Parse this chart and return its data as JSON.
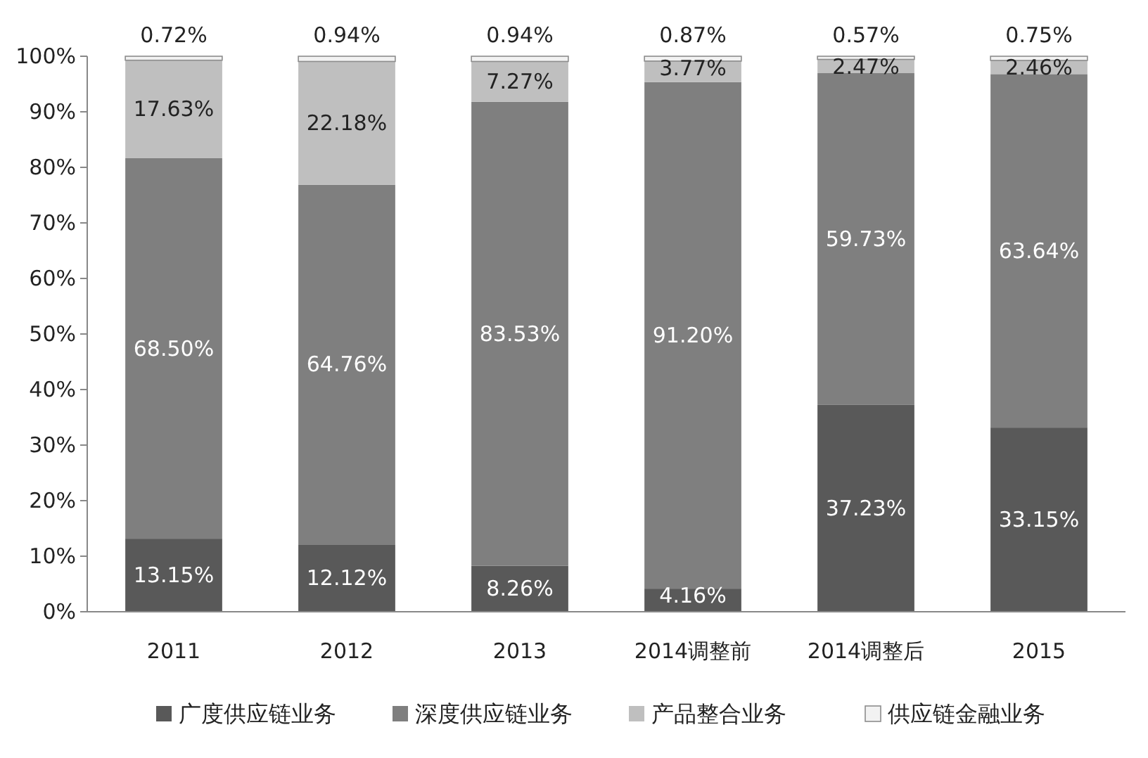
{
  "chart_data": {
    "type": "bar",
    "stacked": true,
    "categories": [
      "2011",
      "2012",
      "2013",
      "2014调整前",
      "2014调整后",
      "2015"
    ],
    "series": [
      {
        "name": "广度供应链业务",
        "color": "#595959",
        "values": [
          13.15,
          12.12,
          8.26,
          4.16,
          37.23,
          33.15
        ],
        "value_labels": [
          "13.15%",
          "12.12%",
          "8.26%",
          "4.16%",
          "37.23%",
          "33.15%"
        ]
      },
      {
        "name": "深度供应链业务",
        "color": "#7f7f7f",
        "values": [
          68.5,
          64.76,
          83.53,
          91.2,
          59.73,
          63.64
        ],
        "value_labels": [
          "68.50%",
          "64.76%",
          "83.53%",
          "91.20%",
          "59.73%",
          "63.64%"
        ]
      },
      {
        "name": "产品整合业务",
        "color": "#bfbfbf",
        "values": [
          17.63,
          22.18,
          7.27,
          3.77,
          2.47,
          2.46
        ],
        "value_labels": [
          "17.63%",
          "22.18%",
          "7.27%",
          "3.77%",
          "2.47%",
          "2.46%"
        ]
      },
      {
        "name": "供应链金融业务",
        "color": "#f2f2f2",
        "values": [
          0.72,
          0.94,
          0.94,
          0.87,
          0.57,
          0.75
        ],
        "value_labels": [
          "0.72%",
          "0.94%",
          "0.94%",
          "0.87%",
          "0.57%",
          "0.75%"
        ]
      }
    ],
    "ylim": [
      0,
      100
    ],
    "yticks": [
      {
        "value": 0,
        "label": "0%"
      },
      {
        "value": 10,
        "label": "10%"
      },
      {
        "value": 20,
        "label": "20%"
      },
      {
        "value": 30,
        "label": "30%"
      },
      {
        "value": 40,
        "label": "40%"
      },
      {
        "value": 50,
        "label": "50%"
      },
      {
        "value": 60,
        "label": "60%"
      },
      {
        "value": 70,
        "label": "70%"
      },
      {
        "value": 80,
        "label": "80%"
      },
      {
        "value": 90,
        "label": "90%"
      },
      {
        "value": 100,
        "label": "100%"
      }
    ],
    "grid": false,
    "legend": "bottom"
  }
}
